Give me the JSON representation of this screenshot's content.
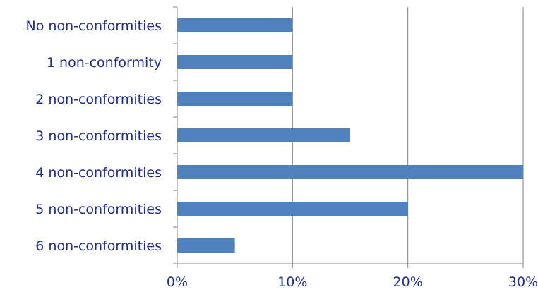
{
  "chart_data": {
    "type": "bar",
    "orientation": "horizontal",
    "categories": [
      "No non-conformities",
      "1 non-conformity",
      "2 non-conformities",
      "3 non-conformities",
      "4 non-conformities",
      "5 non-conformities",
      "6 non-conformities"
    ],
    "values": [
      10,
      10,
      10,
      15,
      30,
      20,
      5
    ],
    "unit": "%",
    "xlim": [
      0,
      30
    ],
    "x_ticks": [
      "0%",
      "10%",
      "20%",
      "30%"
    ],
    "grid": "vertical",
    "colors": {
      "bar": "#4f81bd",
      "text": "#1f2d86",
      "grid": "#808080"
    },
    "title": "",
    "xlabel": "",
    "ylabel": ""
  }
}
